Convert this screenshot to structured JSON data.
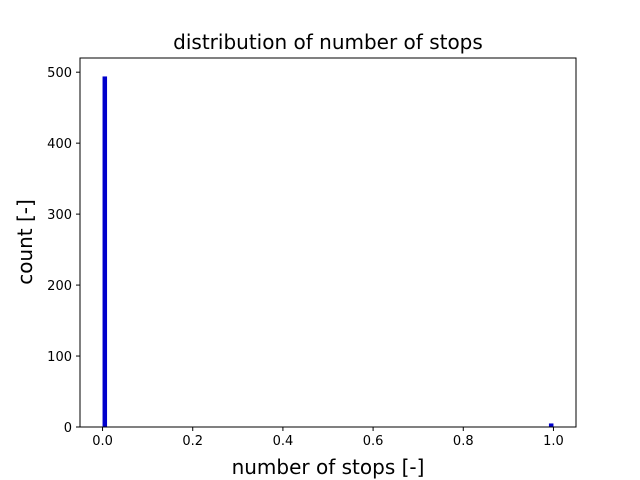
{
  "chart_data": {
    "type": "bar",
    "title": "distribution of number of stops",
    "xlabel": "number of stops [-]",
    "ylabel": "count [-]",
    "xlim": [
      -0.05,
      1.05
    ],
    "ylim": [
      0,
      520
    ],
    "x_ticks": [
      "0.0",
      "0.2",
      "0.4",
      "0.6",
      "0.8",
      "1.0"
    ],
    "x_tick_values": [
      0.0,
      0.2,
      0.4,
      0.6,
      0.8,
      1.0
    ],
    "y_ticks": [
      "0",
      "100",
      "200",
      "300",
      "400",
      "500"
    ],
    "y_tick_values": [
      0,
      100,
      200,
      300,
      400,
      500
    ],
    "bars": [
      {
        "x_start": 0.0,
        "x_end": 0.01,
        "value": 494
      },
      {
        "x_start": 0.99,
        "x_end": 1.0,
        "value": 5
      }
    ],
    "bar_color": "#0000cc",
    "grid": false
  }
}
